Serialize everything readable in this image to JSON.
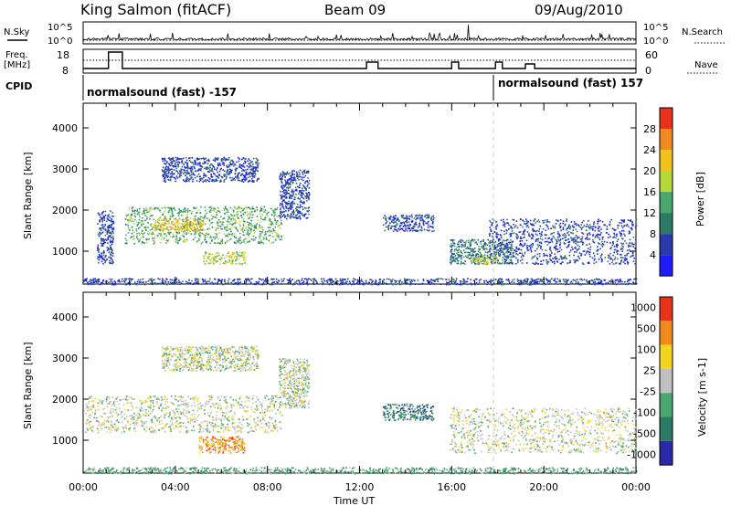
{
  "header": {
    "station": "King Salmon (fitACF)",
    "beam": "Beam 09",
    "date": "09/Aug/2010"
  },
  "top_panels": {
    "nsky_label": "N.Sky",
    "nsky_ticks": [
      "10^5",
      "10^0"
    ],
    "nsearch_label": "N.Search",
    "nsearch_ticks": [
      "10^5",
      "10^0"
    ],
    "freq_label_1": "Freq.",
    "freq_label_2": "[MHz]",
    "freq_ticks": [
      "18",
      "8"
    ],
    "nave_label": "Nave",
    "nave_ticks": [
      "60",
      "0"
    ],
    "cpid_label": "CPID",
    "cpid_segments": [
      {
        "label": "normalsound (fast) -157",
        "start_hour": 0.0,
        "end_hour": 18.0
      },
      {
        "label": "normalsound (fast) 157",
        "start_hour": 18.0,
        "end_hour": 24.0
      }
    ]
  },
  "x_axis": {
    "label": "Time UT",
    "ticks": [
      "00:00",
      "04:00",
      "08:00",
      "12:00",
      "16:00",
      "20:00",
      "00:00"
    ]
  },
  "chart_data": [
    {
      "type": "heatmap",
      "name": "power",
      "xlabel": "Time UT",
      "ylabel": "Slant Range [km]",
      "xlim": [
        0,
        24
      ],
      "ylim": [
        200,
        4600
      ],
      "yticks": [
        "1000",
        "2000",
        "3000",
        "4000"
      ],
      "colorbar_label": "Power [dB]",
      "colorbar_ticks": [
        "4",
        "8",
        "12",
        "16",
        "20",
        "24",
        "28"
      ],
      "colors": [
        "#1c1cff",
        "#2a3aa8",
        "#2c7a66",
        "#4aa86e",
        "#b6d83a",
        "#f2c21c",
        "#f08a1c",
        "#e8321a"
      ],
      "scatter_regions": [
        {
          "t0": 0.6,
          "t1": 1.3,
          "r0": 700,
          "r1": 2000,
          "level": 1
        },
        {
          "t0": 1.8,
          "t1": 8.6,
          "r0": 1200,
          "r1": 2100,
          "level": 3
        },
        {
          "t0": 3.0,
          "t1": 5.2,
          "r0": 1500,
          "r1": 1800,
          "level": 5
        },
        {
          "t0": 5.2,
          "t1": 7.0,
          "r0": 700,
          "r1": 1000,
          "level": 4
        },
        {
          "t0": 3.4,
          "t1": 7.6,
          "r0": 2700,
          "r1": 3300,
          "level": 1
        },
        {
          "t0": 8.5,
          "t1": 9.8,
          "r0": 1800,
          "r1": 3000,
          "level": 1
        },
        {
          "t0": 13.0,
          "t1": 15.2,
          "r0": 1500,
          "r1": 1900,
          "level": 1
        },
        {
          "t0": 15.9,
          "t1": 18.6,
          "r0": 700,
          "r1": 1300,
          "level": 2
        },
        {
          "t0": 16.8,
          "t1": 18.0,
          "r0": 700,
          "r1": 900,
          "level": 4
        },
        {
          "t0": 17.6,
          "t1": 24.0,
          "r0": 700,
          "r1": 1800,
          "level": 1
        },
        {
          "t0": 0.0,
          "t1": 24.0,
          "r0": 200,
          "r1": 350,
          "level": 1
        }
      ]
    },
    {
      "type": "heatmap",
      "name": "velocity",
      "xlabel": "Time UT",
      "ylabel": "Slant Range [km]",
      "xlim": [
        0,
        24
      ],
      "ylim": [
        200,
        4600
      ],
      "yticks": [
        "1000",
        "2000",
        "3000",
        "4000"
      ],
      "colorbar_label": "Velocity [m s-1]",
      "colorbar_ticks": [
        "1000",
        "500",
        "100",
        "25",
        "-25",
        "-100",
        "-500",
        "-1000"
      ],
      "colors": [
        "#2a2aa8",
        "#2c7a66",
        "#4aa86e",
        "#c0c0c0",
        "#f2d41c",
        "#f08a1c",
        "#e8321a"
      ],
      "scatter_regions": [
        {
          "t0": 0.0,
          "t1": 8.6,
          "r0": 1200,
          "r1": 2100,
          "level": 3
        },
        {
          "t0": 5.0,
          "t1": 7.0,
          "r0": 700,
          "r1": 1100,
          "level": 5
        },
        {
          "t0": 3.4,
          "t1": 7.6,
          "r0": 2700,
          "r1": 3300,
          "level": 3
        },
        {
          "t0": 8.5,
          "t1": 9.8,
          "r0": 1800,
          "r1": 3000,
          "level": 3
        },
        {
          "t0": 13.0,
          "t1": 15.2,
          "r0": 1500,
          "r1": 1900,
          "level": 1
        },
        {
          "t0": 15.9,
          "t1": 24.0,
          "r0": 700,
          "r1": 1800,
          "level": 3
        },
        {
          "t0": 0.0,
          "t1": 24.0,
          "r0": 200,
          "r1": 350,
          "level": 2
        }
      ]
    }
  ]
}
